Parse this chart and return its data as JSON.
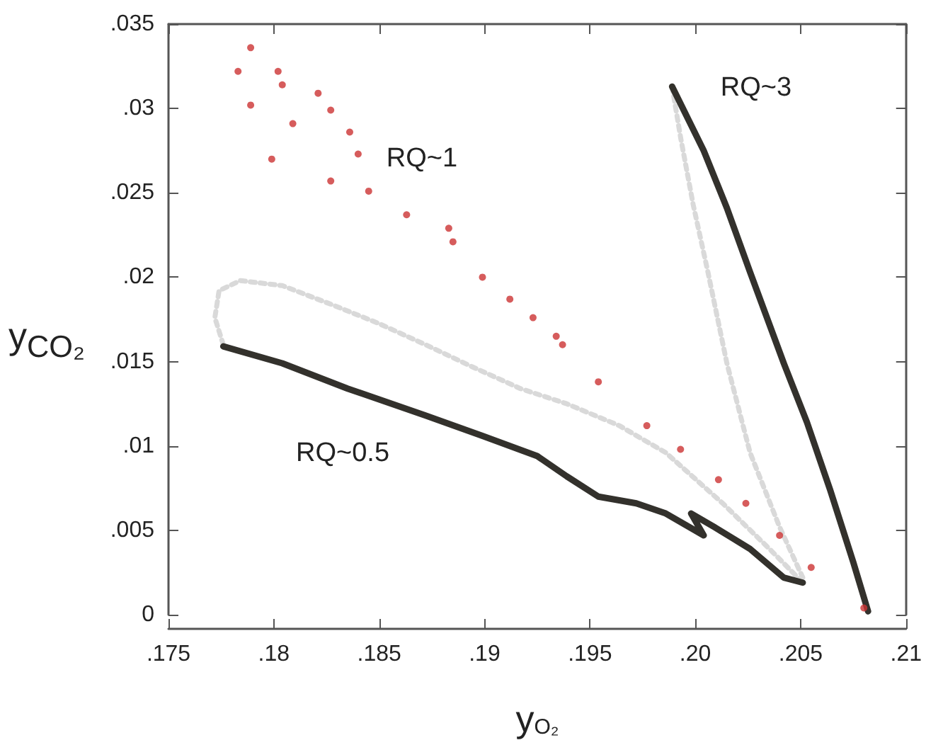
{
  "chart_data": {
    "type": "scatter",
    "xlabel": "y$_{O₂}$",
    "ylabel": "y$_{CO₂}$",
    "xlim": [
      0.175,
      0.21
    ],
    "ylim": [
      0,
      0.035
    ],
    "xticks": [
      {
        "value": 0.175,
        "label": ".175"
      },
      {
        "value": 0.18,
        "label": ".18"
      },
      {
        "value": 0.185,
        "label": ".185"
      },
      {
        "value": 0.19,
        "label": ".19"
      },
      {
        "value": 0.195,
        "label": ".195"
      },
      {
        "value": 0.2,
        "label": ".20"
      },
      {
        "value": 0.205,
        "label": ".205"
      },
      {
        "value": 0.21,
        "label": ".21"
      }
    ],
    "yticks": [
      0,
      {
        "value": 0.005,
        "label": ".005"
      },
      {
        "value": 0.01,
        "label": ".01"
      },
      {
        "value": 0.015,
        "label": ".015"
      },
      {
        "value": 0.02,
        "label": ".02"
      },
      {
        "value": 0.025,
        "label": ".025"
      },
      {
        "value": 0.03,
        "label": ".03"
      },
      {
        "value": 0.035,
        "label": ".035"
      }
    ],
    "grid": false,
    "series": [
      {
        "type": "line",
        "line_style": "dotted",
        "color": "#d9d9d9",
        "x": [
          0.1776,
          0.1772,
          0.1774,
          0.1784,
          0.1804,
          0.1827,
          0.1849,
          0.1872,
          0.1894,
          0.1917,
          0.1939,
          0.1964,
          0.1986,
          0.2013,
          0.2036,
          0.2051
        ],
        "values": [
          0.016,
          0.0176,
          0.0192,
          0.0198,
          0.0195,
          0.0184,
          0.0173,
          0.016,
          0.0147,
          0.0134,
          0.0125,
          0.0112,
          0.0096,
          0.0066,
          0.0038,
          0.0019
        ]
      },
      {
        "type": "line",
        "line_style": "dotted",
        "color": "#d9d9d9",
        "x": [
          0.1989,
          0.1993,
          0.1999,
          0.2006,
          0.2015,
          0.2026,
          0.204,
          0.2051
        ],
        "values": [
          0.0313,
          0.0283,
          0.0243,
          0.0203,
          0.0149,
          0.0096,
          0.0052,
          0.0022
        ]
      },
      {
        "type": "scatter",
        "marker": "circle",
        "color": "#cc3333",
        "x": [
          0.1789,
          0.1783,
          0.1802,
          0.1804,
          0.1789,
          0.1799,
          0.1809,
          0.1821,
          0.1827,
          0.1836,
          0.184,
          0.1827,
          0.1845,
          0.1863,
          0.1883,
          0.1885,
          0.1899,
          0.1912,
          0.1923,
          0.1934,
          0.1937,
          0.1954,
          0.1977,
          0.1993,
          0.2011,
          0.2024,
          0.204,
          0.2055,
          0.208
        ],
        "values": [
          0.0336,
          0.0322,
          0.0322,
          0.0314,
          0.0302,
          0.027,
          0.0291,
          0.0309,
          0.0299,
          0.0286,
          0.0273,
          0.0257,
          0.0251,
          0.0237,
          0.0229,
          0.0221,
          0.02,
          0.0187,
          0.0176,
          0.0165,
          0.016,
          0.0138,
          0.0112,
          0.0098,
          0.008,
          0.0066,
          0.0047,
          0.0028,
          0.0004
        ]
      },
      {
        "type": "line",
        "line_style": "solid",
        "color": "#33312c",
        "x": [
          0.1776,
          0.1804,
          0.1835,
          0.1872,
          0.1899,
          0.1925,
          0.1939,
          0.1954,
          0.1972,
          0.1986,
          0.2004,
          0.1998,
          0.2009,
          0.2026,
          0.2042,
          0.2051
        ],
        "values": [
          0.0159,
          0.0149,
          0.0134,
          0.0118,
          0.0106,
          0.0094,
          0.0082,
          0.007,
          0.0066,
          0.006,
          0.0047,
          0.006,
          0.0052,
          0.0039,
          0.0022,
          0.0019
        ]
      },
      {
        "type": "line",
        "line_style": "solid",
        "color": "#33312c",
        "x": [
          0.1989,
          0.2004,
          0.2015,
          0.2026,
          0.2042,
          0.2053,
          0.2064,
          0.2075,
          0.2082
        ],
        "values": [
          0.0313,
          0.0275,
          0.0241,
          0.0203,
          0.0149,
          0.0114,
          0.0074,
          0.0031,
          0.0002
        ]
      }
    ],
    "annotations": [
      "RQ~1",
      "RQ~3",
      "RQ~0.5"
    ]
  }
}
